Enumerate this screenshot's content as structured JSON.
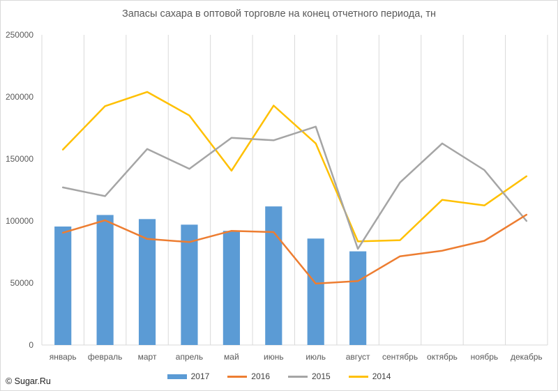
{
  "chart_data": {
    "type": "bar+line",
    "title": "Запасы сахара в оптовой торговле на конец отчетного периода, тн",
    "categories": [
      "январь",
      "февраль",
      "март",
      "апрель",
      "май",
      "июнь",
      "июль",
      "август",
      "сентябрь",
      "октябрь",
      "ноябрь",
      "декабрь"
    ],
    "ylim": [
      0,
      250000
    ],
    "yticks": [
      0,
      50000,
      100000,
      150000,
      200000,
      250000
    ],
    "ytick_labels": [
      "0",
      "50000",
      "100000",
      "150000",
      "200000",
      "250000"
    ],
    "grid": "vertical",
    "legend_position": "bottom",
    "series": [
      {
        "name": "2017",
        "kind": "bar",
        "color": "#5b9bd5",
        "values": [
          95500,
          104800,
          101500,
          97000,
          92000,
          111700,
          85800,
          75500,
          null,
          null,
          null,
          null
        ]
      },
      {
        "name": "2016",
        "kind": "line",
        "color": "#ed7d31",
        "values": [
          90500,
          100500,
          85500,
          83000,
          92000,
          91000,
          49500,
          51500,
          71500,
          76000,
          84000,
          105000
        ]
      },
      {
        "name": "2015",
        "kind": "line",
        "color": "#a5a5a5",
        "values": [
          127000,
          120000,
          158000,
          142000,
          167000,
          165000,
          176000,
          77500,
          131000,
          162500,
          141000,
          100000
        ]
      },
      {
        "name": "2014",
        "kind": "line",
        "color": "#ffc000",
        "values": [
          157500,
          192500,
          204000,
          185000,
          140500,
          193000,
          162500,
          83500,
          84500,
          117000,
          112500,
          136000
        ]
      }
    ]
  },
  "copyright": "© Sugar.Ru"
}
